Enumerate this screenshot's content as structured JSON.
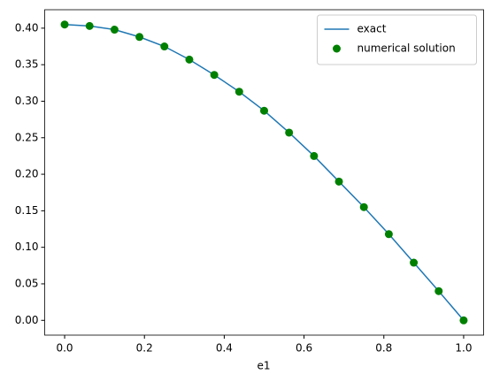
{
  "chart_data": {
    "type": "line",
    "x_label": "e1",
    "x": [
      0,
      0.0625,
      0.125,
      0.1875,
      0.25,
      0.3125,
      0.375,
      0.4375,
      0.5,
      0.5625,
      0.625,
      0.6875,
      0.75,
      0.8125,
      0.875,
      0.9375,
      1
    ],
    "series": [
      {
        "name": "exact",
        "type": "line",
        "color": "#1f77b4",
        "values": [
          0.405,
          0.403,
          0.398,
          0.388,
          0.375,
          0.357,
          0.336,
          0.313,
          0.287,
          0.257,
          0.225,
          0.19,
          0.155,
          0.118,
          0.079,
          0.04,
          0.0
        ]
      },
      {
        "name": "numerical solution",
        "type": "scatter",
        "color": "#008000",
        "values": [
          0.405,
          0.403,
          0.398,
          0.388,
          0.375,
          0.357,
          0.336,
          0.313,
          0.287,
          0.257,
          0.225,
          0.19,
          0.155,
          0.118,
          0.079,
          0.04,
          0.0
        ]
      }
    ],
    "xlim": [
      -0.05,
      1.05
    ],
    "ylim": [
      -0.02025,
      0.42525
    ],
    "xticks": [
      {
        "value": 0,
        "label": "0.0"
      },
      {
        "value": 0.2,
        "label": "0.2"
      },
      {
        "value": 0.4,
        "label": "0.4"
      },
      {
        "value": 0.6,
        "label": "0.6"
      },
      {
        "value": 0.8,
        "label": "0.8"
      },
      {
        "value": 1,
        "label": "1.0"
      }
    ],
    "yticks": [
      {
        "value": 0,
        "label": "0.00"
      },
      {
        "value": 0.05,
        "label": "0.05"
      },
      {
        "value": 0.1,
        "label": "0.10"
      },
      {
        "value": 0.15,
        "label": "0.15"
      },
      {
        "value": 0.2,
        "label": "0.20"
      },
      {
        "value": 0.25,
        "label": "0.25"
      },
      {
        "value": 0.3,
        "label": "0.30"
      },
      {
        "value": 0.35,
        "label": "0.35"
      },
      {
        "value": 0.4,
        "label": "0.40"
      }
    ],
    "legend": "upper right"
  }
}
